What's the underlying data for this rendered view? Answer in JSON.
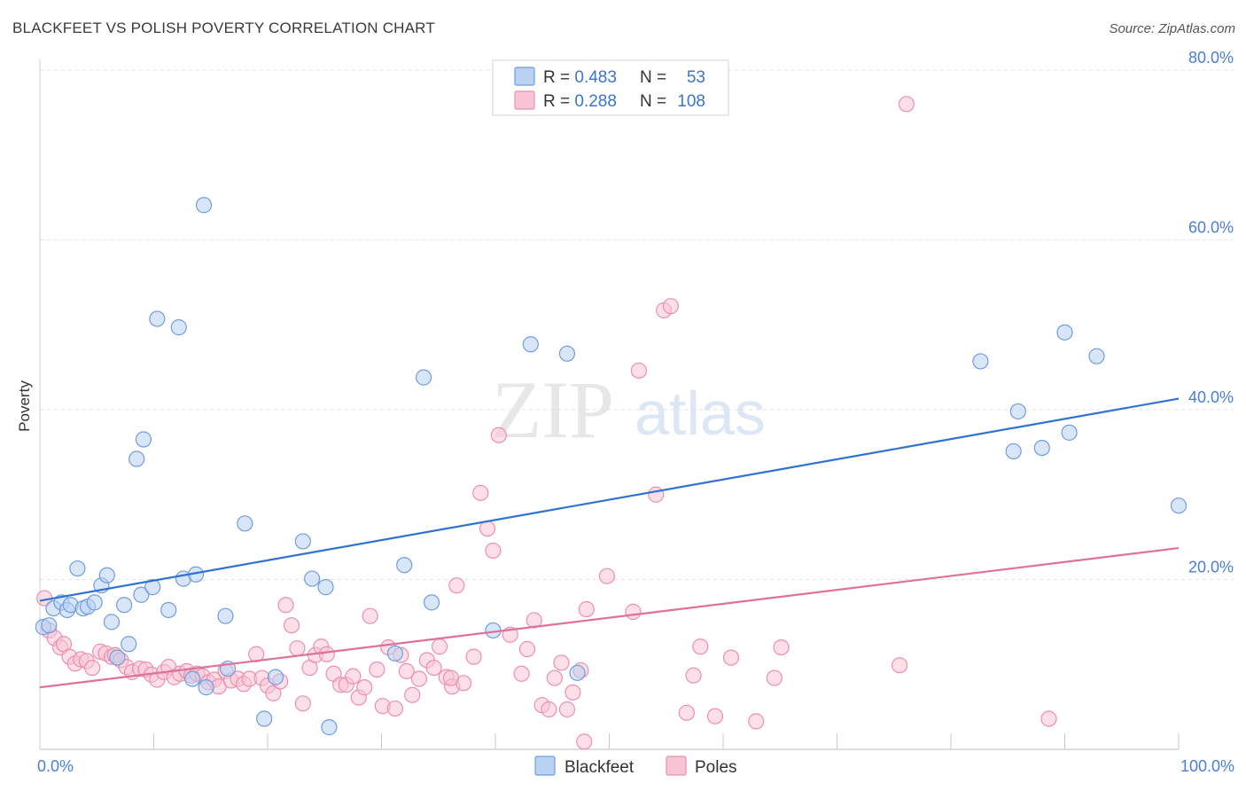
{
  "header": {
    "title": "BLACKFEET VS POLISH POVERTY CORRELATION CHART",
    "source": "Source: ZipAtlas.com"
  },
  "watermark": {
    "zip": "ZIP",
    "atlas": "atlas"
  },
  "stats": {
    "blackfeet": {
      "r_label": "R = ",
      "r_value": "0.483",
      "n_label": "N = ",
      "n_value": "53"
    },
    "poles": {
      "r_label": "R = ",
      "r_value": "0.288",
      "n_label": "N = ",
      "n_value": "108"
    }
  },
  "colors": {
    "blackfeet_fill": "#b9d1f3",
    "blackfeet_stroke": "#6f9de0",
    "blackfeet_line": "#2f72d0",
    "poles_fill": "#f9c4d4",
    "poles_stroke": "#ec8fb0",
    "poles_line": "#e0709a",
    "value_text": "#3b74d1",
    "grid": "#e2e2e2",
    "axis_tick": "#4a7fd6"
  },
  "chart_data": {
    "type": "scatter",
    "title": "BLACKFEET VS POLISH POVERTY CORRELATION CHART",
    "xlabel": "",
    "ylabel": "Poverty",
    "xlim": [
      0,
      100
    ],
    "ylim": [
      0,
      80
    ],
    "x_tick_labels": {
      "min": "0.0%",
      "max": "100.0%"
    },
    "y_ticks": [
      {
        "value": 20,
        "label": "20.0%"
      },
      {
        "value": 40,
        "label": "40.0%"
      },
      {
        "value": 60,
        "label": "60.0%"
      },
      {
        "value": 80,
        "label": "80.0%"
      }
    ],
    "legend": {
      "position": "bottom-center",
      "entries": [
        "Blackfeet",
        "Poles"
      ]
    },
    "series": [
      {
        "name": "Blackfeet",
        "trend": {
          "x0": 0,
          "y0": 17.5,
          "x1": 100,
          "y1": 41.3
        },
        "points": [
          [
            0.3,
            14.4
          ],
          [
            0.8,
            14.6
          ],
          [
            1.2,
            16.6
          ],
          [
            1.9,
            17.3
          ],
          [
            2.4,
            16.4
          ],
          [
            2.7,
            17.0
          ],
          [
            3.3,
            21.3
          ],
          [
            3.8,
            16.6
          ],
          [
            4.2,
            16.8
          ],
          [
            4.8,
            17.3
          ],
          [
            5.4,
            19.3
          ],
          [
            5.9,
            20.5
          ],
          [
            6.3,
            15.0
          ],
          [
            6.8,
            10.8
          ],
          [
            7.4,
            17.0
          ],
          [
            7.8,
            12.4
          ],
          [
            8.5,
            34.2
          ],
          [
            8.9,
            18.2
          ],
          [
            9.1,
            36.5
          ],
          [
            9.9,
            19.1
          ],
          [
            10.3,
            50.7
          ],
          [
            11.3,
            16.4
          ],
          [
            12.2,
            49.7
          ],
          [
            12.6,
            20.1
          ],
          [
            13.4,
            8.3
          ],
          [
            13.7,
            20.6
          ],
          [
            14.4,
            64.1
          ],
          [
            14.6,
            7.3
          ],
          [
            16.3,
            15.7
          ],
          [
            16.5,
            9.5
          ],
          [
            18.0,
            26.6
          ],
          [
            19.7,
            3.6
          ],
          [
            20.7,
            8.5
          ],
          [
            23.1,
            24.5
          ],
          [
            23.9,
            20.1
          ],
          [
            25.1,
            19.1
          ],
          [
            25.4,
            2.6
          ],
          [
            31.2,
            11.3
          ],
          [
            32.0,
            21.7
          ],
          [
            33.7,
            43.8
          ],
          [
            34.4,
            17.3
          ],
          [
            39.8,
            14.0
          ],
          [
            43.1,
            47.7
          ],
          [
            46.3,
            46.6
          ],
          [
            47.2,
            9.0
          ],
          [
            82.6,
            45.7
          ],
          [
            85.5,
            35.1
          ],
          [
            85.9,
            39.8
          ],
          [
            88.0,
            35.5
          ],
          [
            90.0,
            49.1
          ],
          [
            90.4,
            37.3
          ],
          [
            92.8,
            46.3
          ],
          [
            100.0,
            28.7
          ]
        ]
      },
      {
        "name": "Poles",
        "trend": {
          "x0": 0,
          "y0": 7.3,
          "x1": 100,
          "y1": 23.7
        },
        "points": [
          [
            0.4,
            17.8
          ],
          [
            0.8,
            14.0
          ],
          [
            1.3,
            13.1
          ],
          [
            1.8,
            12.0
          ],
          [
            2.1,
            12.4
          ],
          [
            2.6,
            10.9
          ],
          [
            3.1,
            10.1
          ],
          [
            3.6,
            10.6
          ],
          [
            4.1,
            10.4
          ],
          [
            4.6,
            9.6
          ],
          [
            5.3,
            11.5
          ],
          [
            5.8,
            11.3
          ],
          [
            6.3,
            10.9
          ],
          [
            6.6,
            11.1
          ],
          [
            7.1,
            10.5
          ],
          [
            7.6,
            9.7
          ],
          [
            8.1,
            9.1
          ],
          [
            8.8,
            9.5
          ],
          [
            9.3,
            9.4
          ],
          [
            9.8,
            8.8
          ],
          [
            10.3,
            8.2
          ],
          [
            10.9,
            9.1
          ],
          [
            11.3,
            9.7
          ],
          [
            11.8,
            8.5
          ],
          [
            12.3,
            8.9
          ],
          [
            12.9,
            9.2
          ],
          [
            13.3,
            8.7
          ],
          [
            13.8,
            8.9
          ],
          [
            14.3,
            8.6
          ],
          [
            14.8,
            7.9
          ],
          [
            15.3,
            8.2
          ],
          [
            15.7,
            7.4
          ],
          [
            16.3,
            9.2
          ],
          [
            16.8,
            8.1
          ],
          [
            17.4,
            8.3
          ],
          [
            17.9,
            7.7
          ],
          [
            18.4,
            8.3
          ],
          [
            19.0,
            11.2
          ],
          [
            19.5,
            8.4
          ],
          [
            20.0,
            7.5
          ],
          [
            20.5,
            6.6
          ],
          [
            21.1,
            8.0
          ],
          [
            21.6,
            17.0
          ],
          [
            22.1,
            14.6
          ],
          [
            22.6,
            11.9
          ],
          [
            23.1,
            5.4
          ],
          [
            23.7,
            9.6
          ],
          [
            24.2,
            11.1
          ],
          [
            24.7,
            12.1
          ],
          [
            25.2,
            11.2
          ],
          [
            25.8,
            8.9
          ],
          [
            26.4,
            7.6
          ],
          [
            26.9,
            7.6
          ],
          [
            27.5,
            8.6
          ],
          [
            28.0,
            6.1
          ],
          [
            28.5,
            7.3
          ],
          [
            29.0,
            15.7
          ],
          [
            29.6,
            9.4
          ],
          [
            30.1,
            5.1
          ],
          [
            30.6,
            12.0
          ],
          [
            31.2,
            4.8
          ],
          [
            31.7,
            11.1
          ],
          [
            32.2,
            9.2
          ],
          [
            32.7,
            6.4
          ],
          [
            33.3,
            8.3
          ],
          [
            34.0,
            10.5
          ],
          [
            34.6,
            9.6
          ],
          [
            35.1,
            12.1
          ],
          [
            35.7,
            8.5
          ],
          [
            36.2,
            7.4
          ],
          [
            36.6,
            19.3
          ],
          [
            37.2,
            7.8
          ],
          [
            38.1,
            10.9
          ],
          [
            38.7,
            30.2
          ],
          [
            39.3,
            26.0
          ],
          [
            39.8,
            23.4
          ],
          [
            40.3,
            37.0
          ],
          [
            41.3,
            13.5
          ],
          [
            42.3,
            8.9
          ],
          [
            42.8,
            11.8
          ],
          [
            43.4,
            15.2
          ],
          [
            44.1,
            5.2
          ],
          [
            44.7,
            4.7
          ],
          [
            45.2,
            8.4
          ],
          [
            45.8,
            10.2
          ],
          [
            46.3,
            4.7
          ],
          [
            46.8,
            6.7
          ],
          [
            47.5,
            9.3
          ],
          [
            48.0,
            16.5
          ],
          [
            49.8,
            20.4
          ],
          [
            52.1,
            16.2
          ],
          [
            52.6,
            44.6
          ],
          [
            54.8,
            51.7
          ],
          [
            55.4,
            52.2
          ],
          [
            56.8,
            4.3
          ],
          [
            57.4,
            8.7
          ],
          [
            58.0,
            12.1
          ],
          [
            59.3,
            3.9
          ],
          [
            60.7,
            10.8
          ],
          [
            62.9,
            3.3
          ],
          [
            64.5,
            8.4
          ],
          [
            65.1,
            12.0
          ],
          [
            75.5,
            9.9
          ],
          [
            76.1,
            76.0
          ],
          [
            88.6,
            3.6
          ],
          [
            54.1,
            30.0
          ],
          [
            36.1,
            8.4
          ],
          [
            47.8,
            0.9
          ]
        ]
      }
    ]
  }
}
